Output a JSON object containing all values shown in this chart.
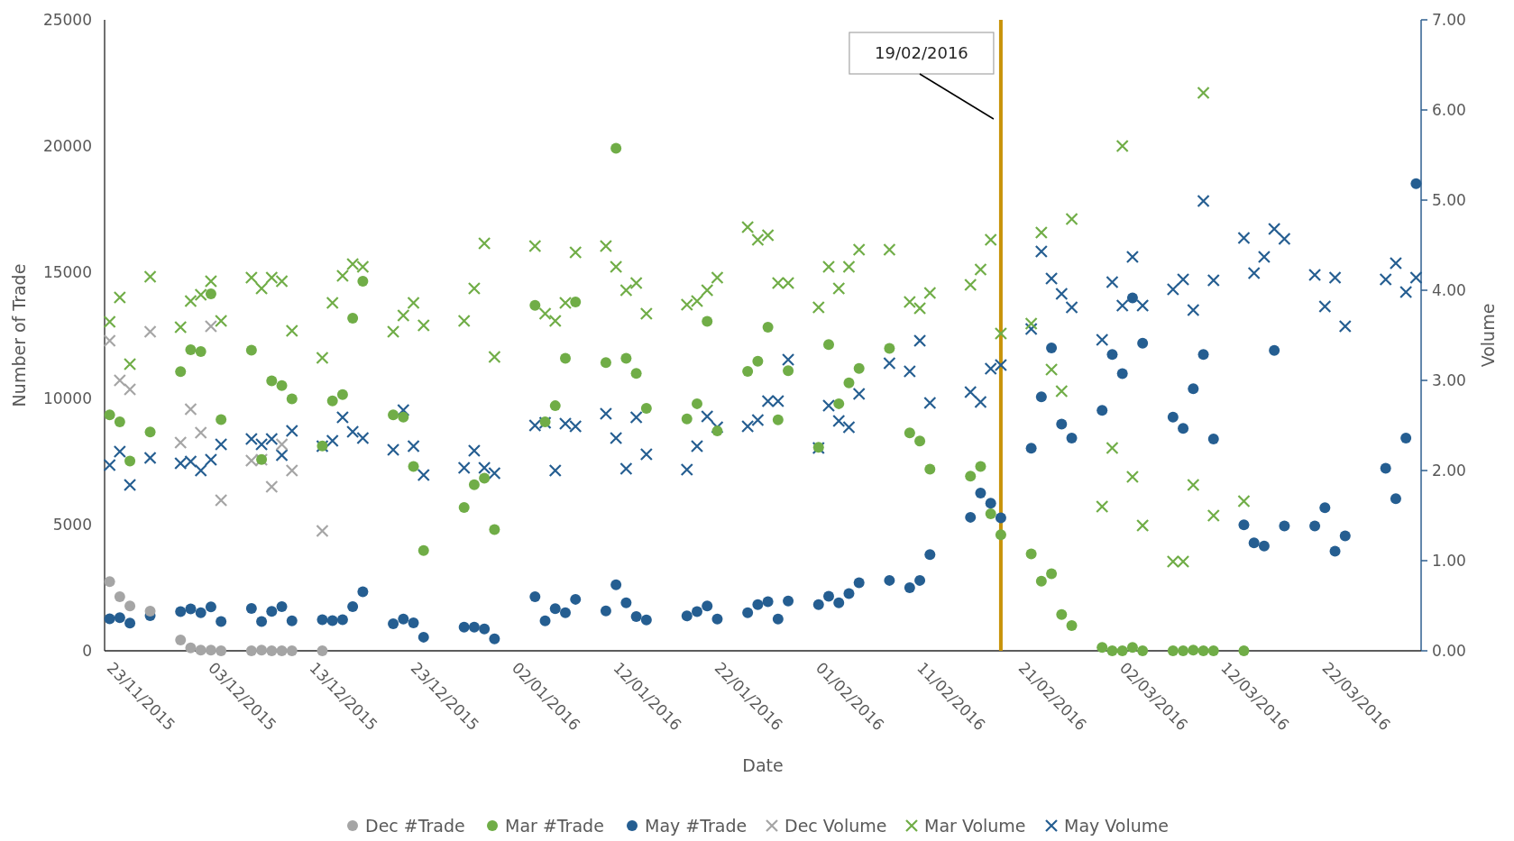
{
  "chart_data": {
    "type": "scatter",
    "xlabel": "Date",
    "ylabel": "Number of Trade",
    "y2label": "Volume",
    "xlim": [
      "2015-11-22T12:00",
      "2016-03-31T12:00"
    ],
    "xticks": [
      {
        "value": "2015-11-23",
        "label": "23/11/2015"
      },
      {
        "value": "2015-12-03",
        "label": "03/12/2015"
      },
      {
        "value": "2015-12-13",
        "label": "13/12/2015"
      },
      {
        "value": "2015-12-23",
        "label": "23/12/2015"
      },
      {
        "value": "2016-01-02",
        "label": "02/01/2016"
      },
      {
        "value": "2016-01-12",
        "label": "12/01/2016"
      },
      {
        "value": "2016-01-22",
        "label": "22/01/2016"
      },
      {
        "value": "2016-02-01",
        "label": "01/02/2016"
      },
      {
        "value": "2016-02-11",
        "label": "11/02/2016"
      },
      {
        "value": "2016-02-21",
        "label": "21/02/2016"
      },
      {
        "value": "2016-03-02",
        "label": "02/03/2016"
      },
      {
        "value": "2016-03-12",
        "label": "12/03/2016"
      },
      {
        "value": "2016-03-22",
        "label": "22/03/2016"
      }
    ],
    "ylim": [
      0,
      25000
    ],
    "yticks": [
      0,
      5000,
      10000,
      15000,
      20000,
      25000
    ],
    "y2lim": [
      0,
      7
    ],
    "y2ticks": [
      {
        "value": 0,
        "label": "0.00"
      },
      {
        "value": 1,
        "label": "1.00"
      },
      {
        "value": 2,
        "label": "2.00"
      },
      {
        "value": 3,
        "label": "3.00"
      },
      {
        "value": 4,
        "label": "4.00"
      },
      {
        "value": 5,
        "label": "5.00"
      },
      {
        "value": 6,
        "label": "6.00"
      },
      {
        "value": 7,
        "label": "7.00"
      }
    ],
    "legend": "bottom",
    "ref_lines": [
      {
        "axis": "x",
        "value": "2016-02-19",
        "label": "19/02/2016",
        "color": "#c8930a"
      }
    ],
    "series": [
      {
        "name": "Dec #Trade",
        "color": "#a5a5a5",
        "marker": "circle",
        "x": [
          "2015-11-23",
          "2015-11-24",
          "2015-11-25",
          "2015-11-27",
          "2015-11-30",
          "2015-12-01",
          "2015-12-02",
          "2015-12-03",
          "2015-12-04",
          "2015-12-07",
          "2015-12-08",
          "2015-12-09",
          "2015-12-10",
          "2015-12-11",
          "2015-12-14"
        ],
        "values": [
          2740,
          2140,
          1780,
          1570,
          430,
          120,
          30,
          30,
          0,
          0,
          30,
          0,
          0,
          0,
          0
        ]
      },
      {
        "name": "Mar #Trade",
        "color": "#70ad47",
        "marker": "circle",
        "x": [
          "2015-11-23",
          "2015-11-24",
          "2015-11-25",
          "2015-11-27",
          "2015-11-30",
          "2015-12-01",
          "2015-12-02",
          "2015-12-03",
          "2015-12-04",
          "2015-12-07",
          "2015-12-08",
          "2015-12-09",
          "2015-12-10",
          "2015-12-11",
          "2015-12-14",
          "2015-12-15",
          "2015-12-16",
          "2015-12-17",
          "2015-12-18",
          "2015-12-21",
          "2015-12-22",
          "2015-12-23",
          "2015-12-24",
          "2015-12-28",
          "2015-12-29",
          "2015-12-30",
          "2015-12-31",
          "2016-01-04",
          "2016-01-05",
          "2016-01-06",
          "2016-01-07",
          "2016-01-08",
          "2016-01-11",
          "2016-01-12",
          "2016-01-13",
          "2016-01-14",
          "2016-01-15",
          "2016-01-19",
          "2016-01-20",
          "2016-01-21",
          "2016-01-22",
          "2016-01-25",
          "2016-01-26",
          "2016-01-27",
          "2016-01-28",
          "2016-01-29",
          "2016-02-01",
          "2016-02-02",
          "2016-02-03",
          "2016-02-04",
          "2016-02-05",
          "2016-02-08",
          "2016-02-10",
          "2016-02-11",
          "2016-02-12",
          "2016-02-16",
          "2016-02-17",
          "2016-02-18",
          "2016-02-19",
          "2016-02-22",
          "2016-02-23",
          "2016-02-24",
          "2016-02-25",
          "2016-02-26",
          "2016-02-29",
          "2016-03-01",
          "2016-03-02",
          "2016-03-03",
          "2016-03-04",
          "2016-03-07",
          "2016-03-08",
          "2016-03-09",
          "2016-03-10",
          "2016-03-11",
          "2016-03-14"
        ],
        "values": [
          9350,
          9070,
          7520,
          8670,
          11060,
          11930,
          11860,
          14140,
          9160,
          11910,
          7580,
          10700,
          10510,
          9980,
          8120,
          9900,
          10150,
          13180,
          14640,
          9350,
          9260,
          7300,
          3970,
          5680,
          6580,
          6840,
          4800,
          13690,
          9070,
          9710,
          11590,
          13820,
          11420,
          19910,
          11590,
          10990,
          9610,
          9190,
          9790,
          13050,
          8710,
          11070,
          11470,
          12820,
          9150,
          11100,
          8060,
          12130,
          9790,
          10620,
          11190,
          11980,
          8630,
          8310,
          7200,
          6920,
          7300,
          5430,
          4600,
          3840,
          2760,
          3050,
          1440,
          1000,
          130,
          0,
          0,
          130,
          0,
          0,
          0,
          30,
          0,
          0,
          0
        ]
      },
      {
        "name": "May #Trade",
        "color": "#255e91",
        "marker": "circle",
        "x": [
          "2015-11-23",
          "2015-11-24",
          "2015-11-25",
          "2015-11-27",
          "2015-11-30",
          "2015-12-01",
          "2015-12-02",
          "2015-12-03",
          "2015-12-04",
          "2015-12-07",
          "2015-12-08",
          "2015-12-09",
          "2015-12-10",
          "2015-12-11",
          "2015-12-14",
          "2015-12-15",
          "2015-12-16",
          "2015-12-17",
          "2015-12-18",
          "2015-12-21",
          "2015-12-22",
          "2015-12-23",
          "2015-12-24",
          "2015-12-28",
          "2015-12-29",
          "2015-12-30",
          "2015-12-31",
          "2016-01-04",
          "2016-01-05",
          "2016-01-06",
          "2016-01-07",
          "2016-01-08",
          "2016-01-11",
          "2016-01-12",
          "2016-01-13",
          "2016-01-14",
          "2016-01-15",
          "2016-01-19",
          "2016-01-20",
          "2016-01-21",
          "2016-01-22",
          "2016-01-25",
          "2016-01-26",
          "2016-01-27",
          "2016-01-28",
          "2016-01-29",
          "2016-02-01",
          "2016-02-02",
          "2016-02-03",
          "2016-02-04",
          "2016-02-05",
          "2016-02-08",
          "2016-02-10",
          "2016-02-11",
          "2016-02-12",
          "2016-02-16",
          "2016-02-17",
          "2016-02-18",
          "2016-02-19",
          "2016-02-22",
          "2016-02-23",
          "2016-02-24",
          "2016-02-25",
          "2016-02-26",
          "2016-02-29",
          "2016-03-01",
          "2016-03-02",
          "2016-03-03",
          "2016-03-04",
          "2016-03-07",
          "2016-03-08",
          "2016-03-09",
          "2016-03-10",
          "2016-03-11",
          "2016-03-14",
          "2016-03-15",
          "2016-03-16",
          "2016-03-17",
          "2016-03-18",
          "2016-03-21",
          "2016-03-22",
          "2016-03-23",
          "2016-03-24",
          "2016-03-28",
          "2016-03-29",
          "2016-03-30",
          "2016-03-31"
        ],
        "values": [
          1270,
          1310,
          1100,
          1390,
          1550,
          1660,
          1510,
          1740,
          1160,
          1680,
          1160,
          1560,
          1750,
          1190,
          1230,
          1200,
          1230,
          1750,
          2340,
          1070,
          1260,
          1110,
          540,
          940,
          940,
          870,
          470,
          2140,
          1190,
          1670,
          1510,
          2040,
          1580,
          2620,
          1900,
          1360,
          1220,
          1380,
          1550,
          1780,
          1260,
          1510,
          1830,
          1950,
          1260,
          1970,
          1830,
          2160,
          1900,
          2270,
          2700,
          2790,
          2500,
          2790,
          3810,
          5290,
          6250,
          5850,
          5270,
          8030,
          10060,
          12000,
          8980,
          8430,
          9530,
          11740,
          10980,
          13980,
          12190,
          9260,
          8810,
          10380,
          11740,
          8390,
          4990,
          4280,
          4150,
          11900,
          4950,
          4950,
          5670,
          3950,
          4550,
          7230,
          6030,
          8430,
          18510
        ]
      },
      {
        "name": "Dec Volume",
        "color": "#a5a5a5",
        "marker": "cross",
        "axis": "y2",
        "x": [
          "2015-11-23",
          "2015-11-24",
          "2015-11-25",
          "2015-11-27",
          "2015-11-30",
          "2015-12-01",
          "2015-12-02",
          "2015-12-03",
          "2015-12-04",
          "2015-12-07",
          "2015-12-08",
          "2015-12-09",
          "2015-12-10",
          "2015-12-11",
          "2015-12-14"
        ],
        "values": [
          3.44,
          3.0,
          2.9,
          3.54,
          2.31,
          2.68,
          2.42,
          3.6,
          1.67,
          2.11,
          2.12,
          1.82,
          2.29,
          2.0,
          1.33
        ]
      },
      {
        "name": "Mar Volume",
        "color": "#70ad47",
        "marker": "cross",
        "axis": "y2",
        "x": [
          "2015-11-23",
          "2015-11-24",
          "2015-11-25",
          "2015-11-27",
          "2015-11-30",
          "2015-12-01",
          "2015-12-02",
          "2015-12-03",
          "2015-12-04",
          "2015-12-07",
          "2015-12-08",
          "2015-12-09",
          "2015-12-10",
          "2015-12-11",
          "2015-12-14",
          "2015-12-15",
          "2015-12-16",
          "2015-12-17",
          "2015-12-18",
          "2015-12-21",
          "2015-12-22",
          "2015-12-23",
          "2015-12-24",
          "2015-12-28",
          "2015-12-29",
          "2015-12-30",
          "2015-12-31",
          "2016-01-04",
          "2016-01-05",
          "2016-01-06",
          "2016-01-07",
          "2016-01-08",
          "2016-01-11",
          "2016-01-12",
          "2016-01-13",
          "2016-01-14",
          "2016-01-15",
          "2016-01-19",
          "2016-01-20",
          "2016-01-21",
          "2016-01-22",
          "2016-01-25",
          "2016-01-26",
          "2016-01-27",
          "2016-01-28",
          "2016-01-29",
          "2016-02-01",
          "2016-02-02",
          "2016-02-03",
          "2016-02-04",
          "2016-02-05",
          "2016-02-08",
          "2016-02-10",
          "2016-02-11",
          "2016-02-12",
          "2016-02-16",
          "2016-02-17",
          "2016-02-18",
          "2016-02-19",
          "2016-02-22",
          "2016-02-23",
          "2016-02-24",
          "2016-02-25",
          "2016-02-26",
          "2016-02-29",
          "2016-03-01",
          "2016-03-02",
          "2016-03-03",
          "2016-03-04",
          "2016-03-07",
          "2016-03-08",
          "2016-03-09",
          "2016-03-10",
          "2016-03-11",
          "2016-03-14"
        ],
        "values": [
          3.65,
          3.92,
          3.18,
          4.15,
          3.59,
          3.88,
          3.95,
          4.1,
          3.66,
          4.14,
          4.02,
          4.14,
          4.1,
          3.55,
          3.25,
          3.86,
          4.16,
          4.29,
          4.26,
          3.54,
          3.72,
          3.86,
          3.61,
          3.66,
          4.02,
          4.52,
          3.26,
          4.49,
          3.74,
          3.66,
          3.86,
          4.42,
          4.49,
          4.26,
          4.0,
          4.08,
          3.74,
          3.84,
          3.88,
          4.0,
          4.14,
          4.7,
          4.56,
          4.61,
          4.08,
          4.08,
          3.81,
          4.26,
          4.02,
          4.26,
          4.45,
          4.45,
          3.87,
          3.8,
          3.97,
          4.06,
          4.23,
          4.56,
          3.52,
          3.63,
          4.64,
          3.12,
          2.88,
          4.79,
          1.6,
          2.25,
          5.6,
          1.93,
          1.39,
          0.99,
          0.99,
          1.84,
          6.19,
          1.5,
          1.66
        ]
      },
      {
        "name": "May Volume",
        "color": "#255e91",
        "marker": "cross",
        "axis": "y2",
        "x": [
          "2015-11-23",
          "2015-11-24",
          "2015-11-25",
          "2015-11-27",
          "2015-11-30",
          "2015-12-01",
          "2015-12-02",
          "2015-12-03",
          "2015-12-04",
          "2015-12-07",
          "2015-12-08",
          "2015-12-09",
          "2015-12-10",
          "2015-12-11",
          "2015-12-14",
          "2015-12-15",
          "2015-12-16",
          "2015-12-17",
          "2015-12-18",
          "2015-12-21",
          "2015-12-22",
          "2015-12-23",
          "2015-12-24",
          "2015-12-28",
          "2015-12-29",
          "2015-12-30",
          "2015-12-31",
          "2016-01-04",
          "2016-01-05",
          "2016-01-06",
          "2016-01-07",
          "2016-01-08",
          "2016-01-11",
          "2016-01-12",
          "2016-01-13",
          "2016-01-14",
          "2016-01-15",
          "2016-01-19",
          "2016-01-20",
          "2016-01-21",
          "2016-01-22",
          "2016-01-25",
          "2016-01-26",
          "2016-01-27",
          "2016-01-28",
          "2016-01-29",
          "2016-02-01",
          "2016-02-02",
          "2016-02-03",
          "2016-02-04",
          "2016-02-05",
          "2016-02-08",
          "2016-02-10",
          "2016-02-11",
          "2016-02-12",
          "2016-02-16",
          "2016-02-17",
          "2016-02-18",
          "2016-02-19",
          "2016-02-22",
          "2016-02-23",
          "2016-02-24",
          "2016-02-25",
          "2016-02-26",
          "2016-02-29",
          "2016-03-01",
          "2016-03-02",
          "2016-03-03",
          "2016-03-04",
          "2016-03-07",
          "2016-03-08",
          "2016-03-09",
          "2016-03-10",
          "2016-03-11",
          "2016-03-14",
          "2016-03-15",
          "2016-03-16",
          "2016-03-17",
          "2016-03-18",
          "2016-03-21",
          "2016-03-22",
          "2016-03-23",
          "2016-03-24",
          "2016-03-28",
          "2016-03-29",
          "2016-03-30",
          "2016-03-31"
        ],
        "values": [
          2.06,
          2.21,
          1.84,
          2.14,
          2.08,
          2.1,
          2.0,
          2.12,
          2.29,
          2.35,
          2.29,
          2.35,
          2.17,
          2.44,
          2.27,
          2.33,
          2.59,
          2.43,
          2.36,
          2.23,
          2.67,
          2.27,
          1.95,
          2.03,
          2.22,
          2.03,
          1.97,
          2.5,
          2.53,
          2.0,
          2.52,
          2.49,
          2.63,
          2.36,
          2.02,
          2.59,
          2.18,
          2.01,
          2.27,
          2.6,
          2.48,
          2.49,
          2.56,
          2.77,
          2.77,
          3.23,
          2.25,
          2.72,
          2.55,
          2.48,
          2.85,
          3.19,
          3.1,
          3.44,
          2.75,
          2.87,
          2.76,
          3.13,
          3.17,
          3.57,
          4.43,
          4.13,
          3.96,
          3.81,
          3.45,
          4.09,
          3.83,
          4.37,
          3.83,
          4.01,
          4.12,
          3.78,
          4.99,
          4.11,
          4.58,
          4.19,
          4.37,
          4.68,
          4.57,
          4.17,
          3.82,
          4.14,
          3.6,
          4.12,
          4.3,
          3.98,
          4.14
        ]
      }
    ]
  }
}
